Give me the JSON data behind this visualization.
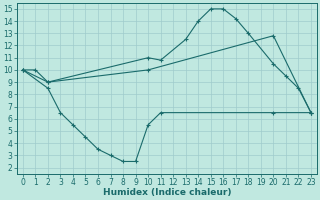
{
  "bg_color": "#c0e8e0",
  "grid_color": "#a0cccc",
  "line_color": "#1a6b6b",
  "line1_x": [
    0,
    1,
    2,
    10,
    11,
    13,
    14,
    15,
    16,
    17,
    18,
    20,
    21,
    22,
    23
  ],
  "line1_y": [
    10,
    10,
    9,
    11,
    10.8,
    12.5,
    14,
    15,
    15,
    14.2,
    13,
    10.5,
    9.5,
    8.5,
    6.5
  ],
  "line2_x": [
    0,
    2,
    10,
    20,
    23
  ],
  "line2_y": [
    10,
    9,
    10,
    12.8,
    6.5
  ],
  "line3_x": [
    0,
    2,
    3,
    4,
    5,
    6,
    7,
    8,
    9,
    10,
    11,
    20,
    23
  ],
  "line3_y": [
    10,
    8.5,
    6.5,
    5.5,
    4.5,
    3.5,
    3.0,
    2.5,
    2.5,
    5.5,
    6.5,
    6.5,
    6.5
  ],
  "xlabel": "Humidex (Indice chaleur)",
  "xlim": [
    -0.5,
    23.5
  ],
  "ylim": [
    1.5,
    15.5
  ],
  "xticks": [
    0,
    1,
    2,
    3,
    4,
    5,
    6,
    7,
    8,
    9,
    10,
    11,
    12,
    13,
    14,
    15,
    16,
    17,
    18,
    19,
    20,
    21,
    22,
    23
  ],
  "yticks": [
    2,
    3,
    4,
    5,
    6,
    7,
    8,
    9,
    10,
    11,
    12,
    13,
    14,
    15
  ],
  "xlabel_fontsize": 6.5,
  "tick_fontsize": 5.5
}
